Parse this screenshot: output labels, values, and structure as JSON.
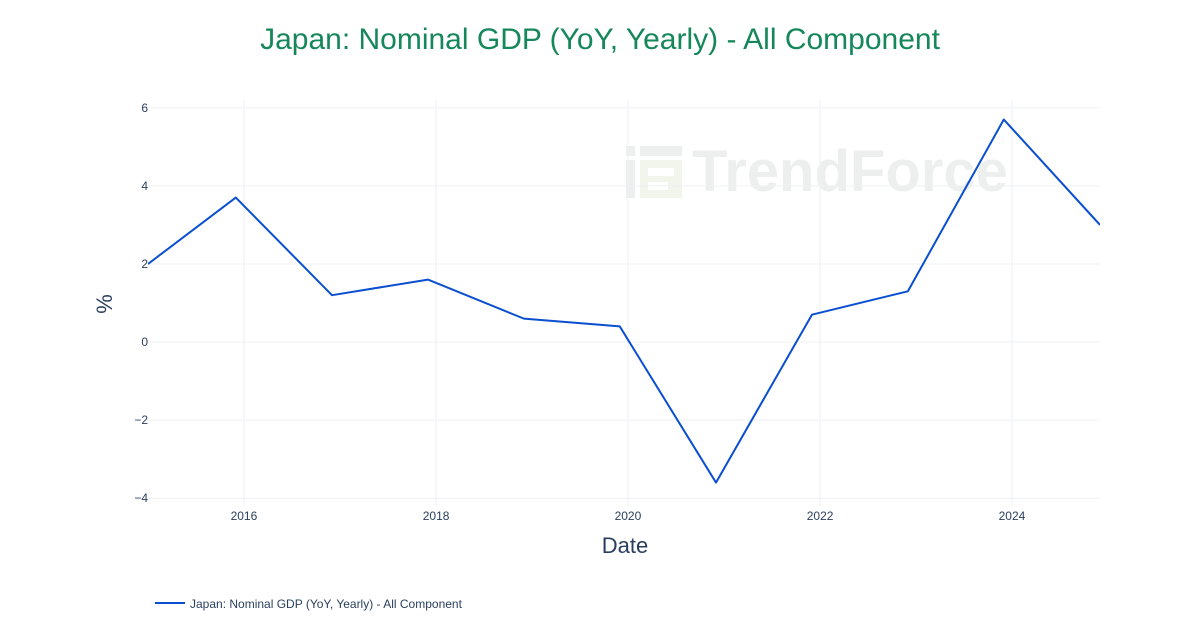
{
  "chart_data": {
    "type": "line",
    "title": "Japan: Nominal GDP (YoY, Yearly) - All Component",
    "xlabel": "Date",
    "ylabel": "%",
    "x": [
      "2015-01-01",
      "2015-12-01",
      "2016-12-01",
      "2017-12-01",
      "2018-12-01",
      "2019-12-01",
      "2020-12-01",
      "2021-12-01",
      "2022-12-01",
      "2023-12-01",
      "2024-12-01"
    ],
    "series": [
      {
        "name": "Japan: Nominal GDP (YoY, Yearly) - All Component",
        "color": "#0a4fd0",
        "values": [
          2.0,
          3.7,
          1.2,
          1.6,
          0.6,
          0.4,
          -3.6,
          0.7,
          1.3,
          5.7,
          3.0
        ]
      }
    ],
    "xlim": [
      "2015-01-01",
      "2024-12-01"
    ],
    "ylim": [
      -4.2,
      6.2
    ],
    "x_ticks": [
      "2016",
      "2018",
      "2020",
      "2022",
      "2024"
    ],
    "y_ticks": [
      "6",
      "4",
      "2",
      "0",
      "−2",
      "−4"
    ],
    "grid": true,
    "legend_position": "bottom-left",
    "watermark": "TrendForce",
    "colors": {
      "title": "#16875a",
      "line": "#0a4fd0",
      "grid": "#eef0f4",
      "text": "#2a3f5f"
    }
  }
}
